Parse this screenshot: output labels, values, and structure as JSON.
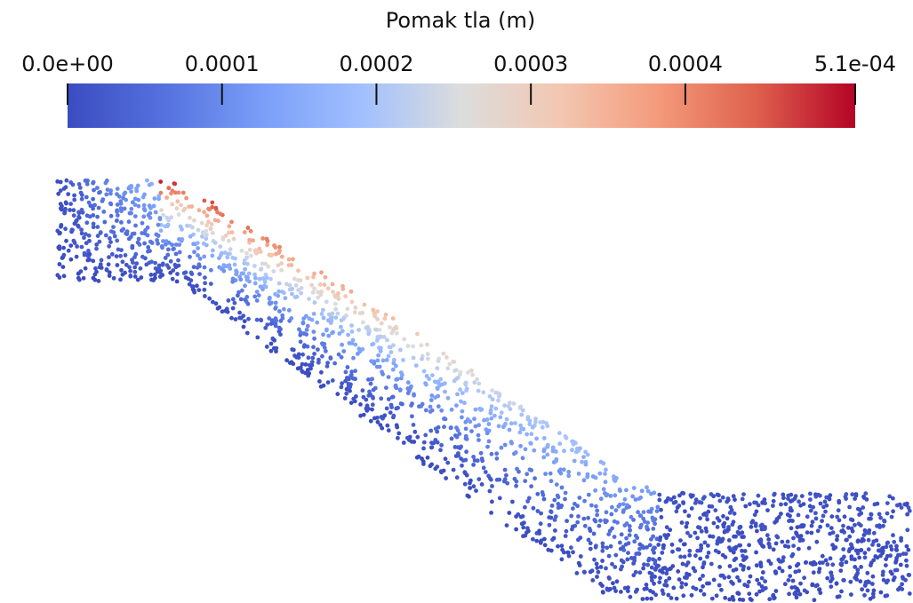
{
  "chart_data": {
    "type": "scatter",
    "title": "Pomak tla (m)",
    "colorbar": {
      "label": "Pomak tla (m)",
      "range": [
        0.0,
        0.00051
      ],
      "ticks": [
        {
          "value": 0.0,
          "label": "0.0e+00"
        },
        {
          "value": 0.0001,
          "label": "0.0001"
        },
        {
          "value": 0.0002,
          "label": "0.0002"
        },
        {
          "value": 0.0003,
          "label": "0.0003"
        },
        {
          "value": 0.0004,
          "label": "0.0004"
        },
        {
          "value": 0.00051,
          "label": "5.1e-04"
        }
      ],
      "colormap": "coolwarm",
      "colors": [
        "#3b4cc0",
        "#dddddd",
        "#b40426"
      ]
    },
    "field": {
      "description_shape": "slope",
      "variable": "displacement",
      "min": 0.0,
      "max": 0.00051
    }
  }
}
